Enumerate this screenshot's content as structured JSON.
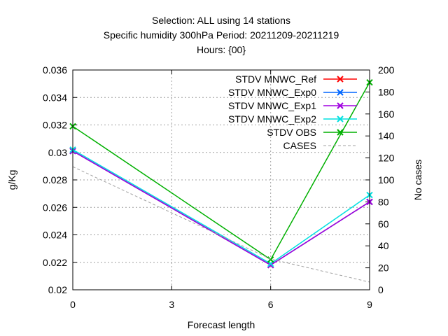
{
  "chart_data": {
    "type": "line",
    "title_lines": [
      "Selection: ALL using    14 stations",
      "Specific humidity 300hPa   Period: 20211209-20211219",
      "Hours: {00}"
    ],
    "xlabel": "Forecast length",
    "ylabel": "g/Kg",
    "y2label": "No cases",
    "x": [
      0,
      6,
      9
    ],
    "xlim": [
      0,
      9
    ],
    "ylim": [
      0.02,
      0.036
    ],
    "y2lim": [
      0,
      200
    ],
    "xticks": [
      "0",
      "3",
      "6",
      "9"
    ],
    "yticks": [
      "0.02",
      "0.022",
      "0.024",
      "0.026",
      "0.028",
      "0.03",
      "0.032",
      "0.034",
      "0.036"
    ],
    "y2ticks": [
      "0",
      "20",
      "40",
      "60",
      "80",
      "100",
      "120",
      "140",
      "160",
      "180",
      "200"
    ],
    "grid": true,
    "legend_position": "top-right",
    "series": [
      {
        "name": "STDV MNWC_Ref",
        "axis": "left",
        "color": "#ff0000",
        "marker": "x",
        "values": [
          0.0301,
          0.0218,
          0.0264
        ]
      },
      {
        "name": "STDV MNWC_Exp0",
        "axis": "left",
        "color": "#0066ff",
        "marker": "x",
        "values": [
          0.0301,
          0.0218,
          0.0264
        ]
      },
      {
        "name": "STDV MNWC_Exp1",
        "axis": "left",
        "color": "#a000e0",
        "marker": "x",
        "values": [
          0.0301,
          0.0218,
          0.0264
        ]
      },
      {
        "name": "STDV MNWC_Exp2",
        "axis": "left",
        "color": "#00e0e0",
        "marker": "x",
        "values": [
          0.0302,
          0.0219,
          0.0269
        ]
      },
      {
        "name": "STDV OBS",
        "axis": "left",
        "color": "#00b000",
        "marker": "x",
        "values": [
          0.0319,
          0.0222,
          0.0351
        ]
      },
      {
        "name": "CASES",
        "axis": "right",
        "color": "#a0a0a0",
        "dashed": true,
        "values": [
          112,
          28,
          7
        ]
      }
    ]
  }
}
